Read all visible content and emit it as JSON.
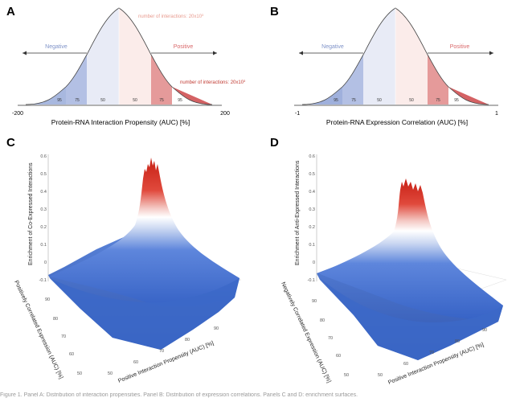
{
  "panels": {
    "A": {
      "letter": "A",
      "top_note": "number of interactions: 20x10",
      "top_note_exp": "3",
      "bottom_note": "number of interactions: 20x10",
      "bottom_note_exp": "3",
      "negative_label": "Negative",
      "positive_label": "Positive",
      "band_labels": [
        "95",
        "75",
        "50",
        "50",
        "75",
        "95"
      ],
      "axis_min": "-200",
      "axis_max": "200",
      "xlabel": "Protein-RNA Interaction Propensity (AUC) [%]"
    },
    "B": {
      "letter": "B",
      "negative_label": "Negative",
      "positive_label": "Positive",
      "band_labels": [
        "95",
        "75",
        "50",
        "50",
        "75",
        "95"
      ],
      "axis_min": "-1",
      "axis_max": "1",
      "xlabel": "Protein-RNA Expression Correlation (AUC) [%]"
    },
    "C": {
      "letter": "C",
      "zlabel": "Enrichment of Co-Expressed Interactions",
      "zticks": [
        "0.6",
        "0.5",
        "0.4",
        "0.3",
        "0.2",
        "0.1",
        "0",
        "-0.1"
      ],
      "ylabel": "Positively Correlated Expression (AUC) [%]",
      "yticks": [
        "90",
        "80",
        "70",
        "60",
        "50"
      ],
      "xlabel": "Positive Interaction Propensity (AUC) [%]",
      "xticks": [
        "90",
        "80",
        "70",
        "60",
        "50"
      ]
    },
    "D": {
      "letter": "D",
      "zlabel": "Enrichment of Anti-Expressed Interactions",
      "zticks": [
        "0.6",
        "0.5",
        "0.4",
        "0.3",
        "0.2",
        "0.1",
        "0",
        "-0.1"
      ],
      "ylabel": "Negatively Correlated Expression (AUC) [%]",
      "yticks": [
        "90",
        "80",
        "70",
        "60",
        "50"
      ],
      "xlabel": "Positive Interaction Propensity (AUC) [%]",
      "xticks": [
        "90",
        "80",
        "70",
        "60",
        "50"
      ]
    }
  },
  "colors": {
    "negative": "#7f93c8",
    "positive": "#d9686a",
    "surface_blue": "#3f6fcf",
    "surface_red": "#d02a1e"
  },
  "caption": "Figure 1. Panel A: Distribution of interaction propensities. Panel B: Distribution of expression correlations. Panels C and D: enrichment surfaces."
}
